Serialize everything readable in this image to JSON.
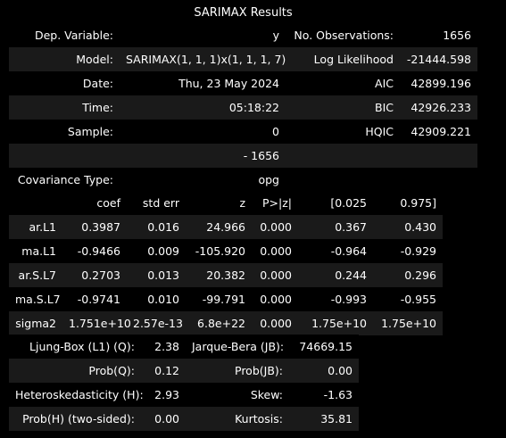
{
  "caption": "SARIMAX Results",
  "summary": {
    "rows": [
      [
        "Dep. Variable:",
        "y",
        "No. Observations:",
        "1656"
      ],
      [
        "Model:",
        "SARIMAX(1, 1, 1)x(1, 1, 1, 7)",
        "Log Likelihood",
        "-21444.598"
      ],
      [
        "Date:",
        "Thu, 23 May 2024",
        "AIC",
        "42899.196"
      ],
      [
        "Time:",
        "05:18:22",
        "BIC",
        "42926.233"
      ],
      [
        "Sample:",
        "0",
        "HQIC",
        "42909.221"
      ],
      [
        "",
        "- 1656",
        "",
        ""
      ],
      [
        "Covariance Type:",
        "opg",
        "",
        ""
      ]
    ]
  },
  "coefficients": {
    "header": [
      "",
      "coef",
      "std err",
      "z",
      "P>|z|",
      "[0.025",
      "0.975]"
    ],
    "rows": [
      [
        "ar.L1",
        "0.3987",
        "0.016",
        "24.966",
        "0.000",
        "0.367",
        "0.430"
      ],
      [
        "ma.L1",
        "-0.9466",
        "0.009",
        "-105.920",
        "0.000",
        "-0.964",
        "-0.929"
      ],
      [
        "ar.S.L7",
        "0.2703",
        "0.013",
        "20.382",
        "0.000",
        "0.244",
        "0.296"
      ],
      [
        "ma.S.L7",
        "-0.9741",
        "0.010",
        "-99.791",
        "0.000",
        "-0.993",
        "-0.955"
      ],
      [
        "sigma2",
        "1.751e+10",
        "2.57e-13",
        "6.8e+22",
        "0.000",
        "1.75e+10",
        "1.75e+10"
      ]
    ]
  },
  "diagnostics": {
    "rows": [
      [
        "Ljung-Box (L1) (Q):",
        "2.38",
        "Jarque-Bera (JB):",
        "74669.15"
      ],
      [
        "Prob(Q):",
        "0.12",
        "Prob(JB):",
        "0.00"
      ],
      [
        "Heteroskedasticity (H):",
        "2.93",
        "Skew:",
        "-1.63"
      ],
      [
        "Prob(H) (two-sided):",
        "0.00",
        "Kurtosis:",
        "35.81"
      ]
    ]
  }
}
